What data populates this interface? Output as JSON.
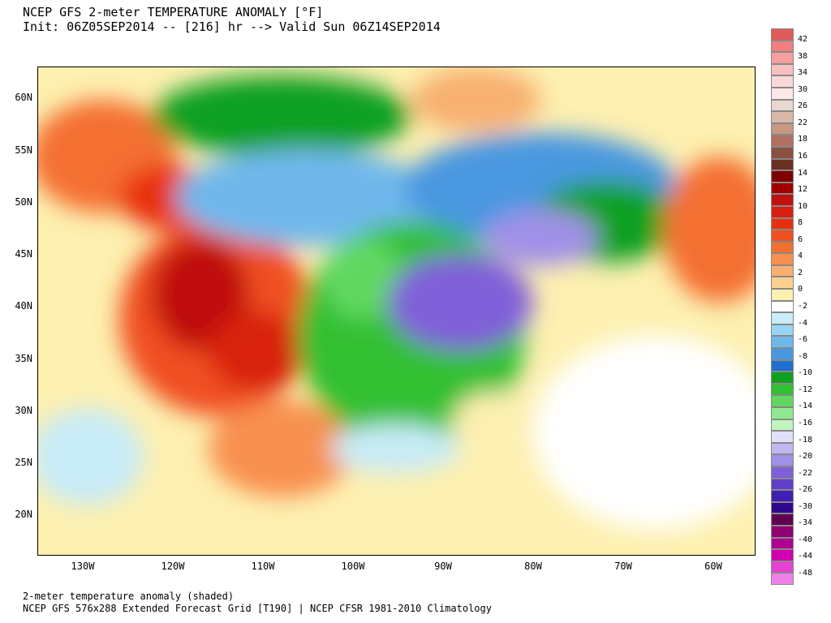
{
  "header": {
    "line1": "NCEP GFS 2-meter TEMPERATURE ANOMALY [°F]",
    "line2": "Init: 06Z05SEP2014 -- [216] hr --> Valid Sun 06Z14SEP2014"
  },
  "footer": {
    "line1": "2-meter temperature anomaly (shaded)",
    "line2": "NCEP GFS 576x288 Extended Forecast Grid [T190] | NCEP CFSR 1981-2010 Climatology"
  },
  "axes": {
    "lat_labels": [
      "60N",
      "55N",
      "50N",
      "45N",
      "40N",
      "35N",
      "30N",
      "25N",
      "20N"
    ],
    "lon_labels": [
      "130W",
      "120W",
      "110W",
      "100W",
      "90W",
      "80W",
      "70W",
      "60W"
    ]
  },
  "colorbar": {
    "labels": [
      "42",
      "38",
      "34",
      "30",
      "26",
      "22",
      "18",
      "16",
      "14",
      "12",
      "10",
      "8",
      "6",
      "4",
      "2",
      "0",
      "-2",
      "-4",
      "-6",
      "-8",
      "-10",
      "-12",
      "-14",
      "-16",
      "-18",
      "-20",
      "-22",
      "-26",
      "-30",
      "-34",
      "-40",
      "-44",
      "-48"
    ],
    "colors": [
      "#e05a5a",
      "#f08080",
      "#f4a0a0",
      "#f8c0c0",
      "#fbd8d8",
      "#fde8e8",
      "#e8d8d0",
      "#d8b8a8",
      "#c89880",
      "#b07060",
      "#8a5040",
      "#6a3020",
      "#800000",
      "#a00000",
      "#c01010",
      "#d82010",
      "#e83010",
      "#f05020",
      "#f47030",
      "#f89050",
      "#f8b070",
      "#fcd090",
      "#fdf0b0",
      "#ffffff",
      "#c8ecf8",
      "#98d4f4",
      "#70b8ec",
      "#4898e0",
      "#2070d0",
      "#10a020",
      "#30c030",
      "#60d860",
      "#90e890",
      "#c0f4c0",
      "#e0e0f8",
      "#c0b8f0",
      "#a090e8",
      "#8060d8",
      "#6040c8",
      "#4020b0",
      "#300890",
      "#600050",
      "#900070",
      "#b00090",
      "#d000b0",
      "#e840d0",
      "#f080e8"
    ]
  }
}
